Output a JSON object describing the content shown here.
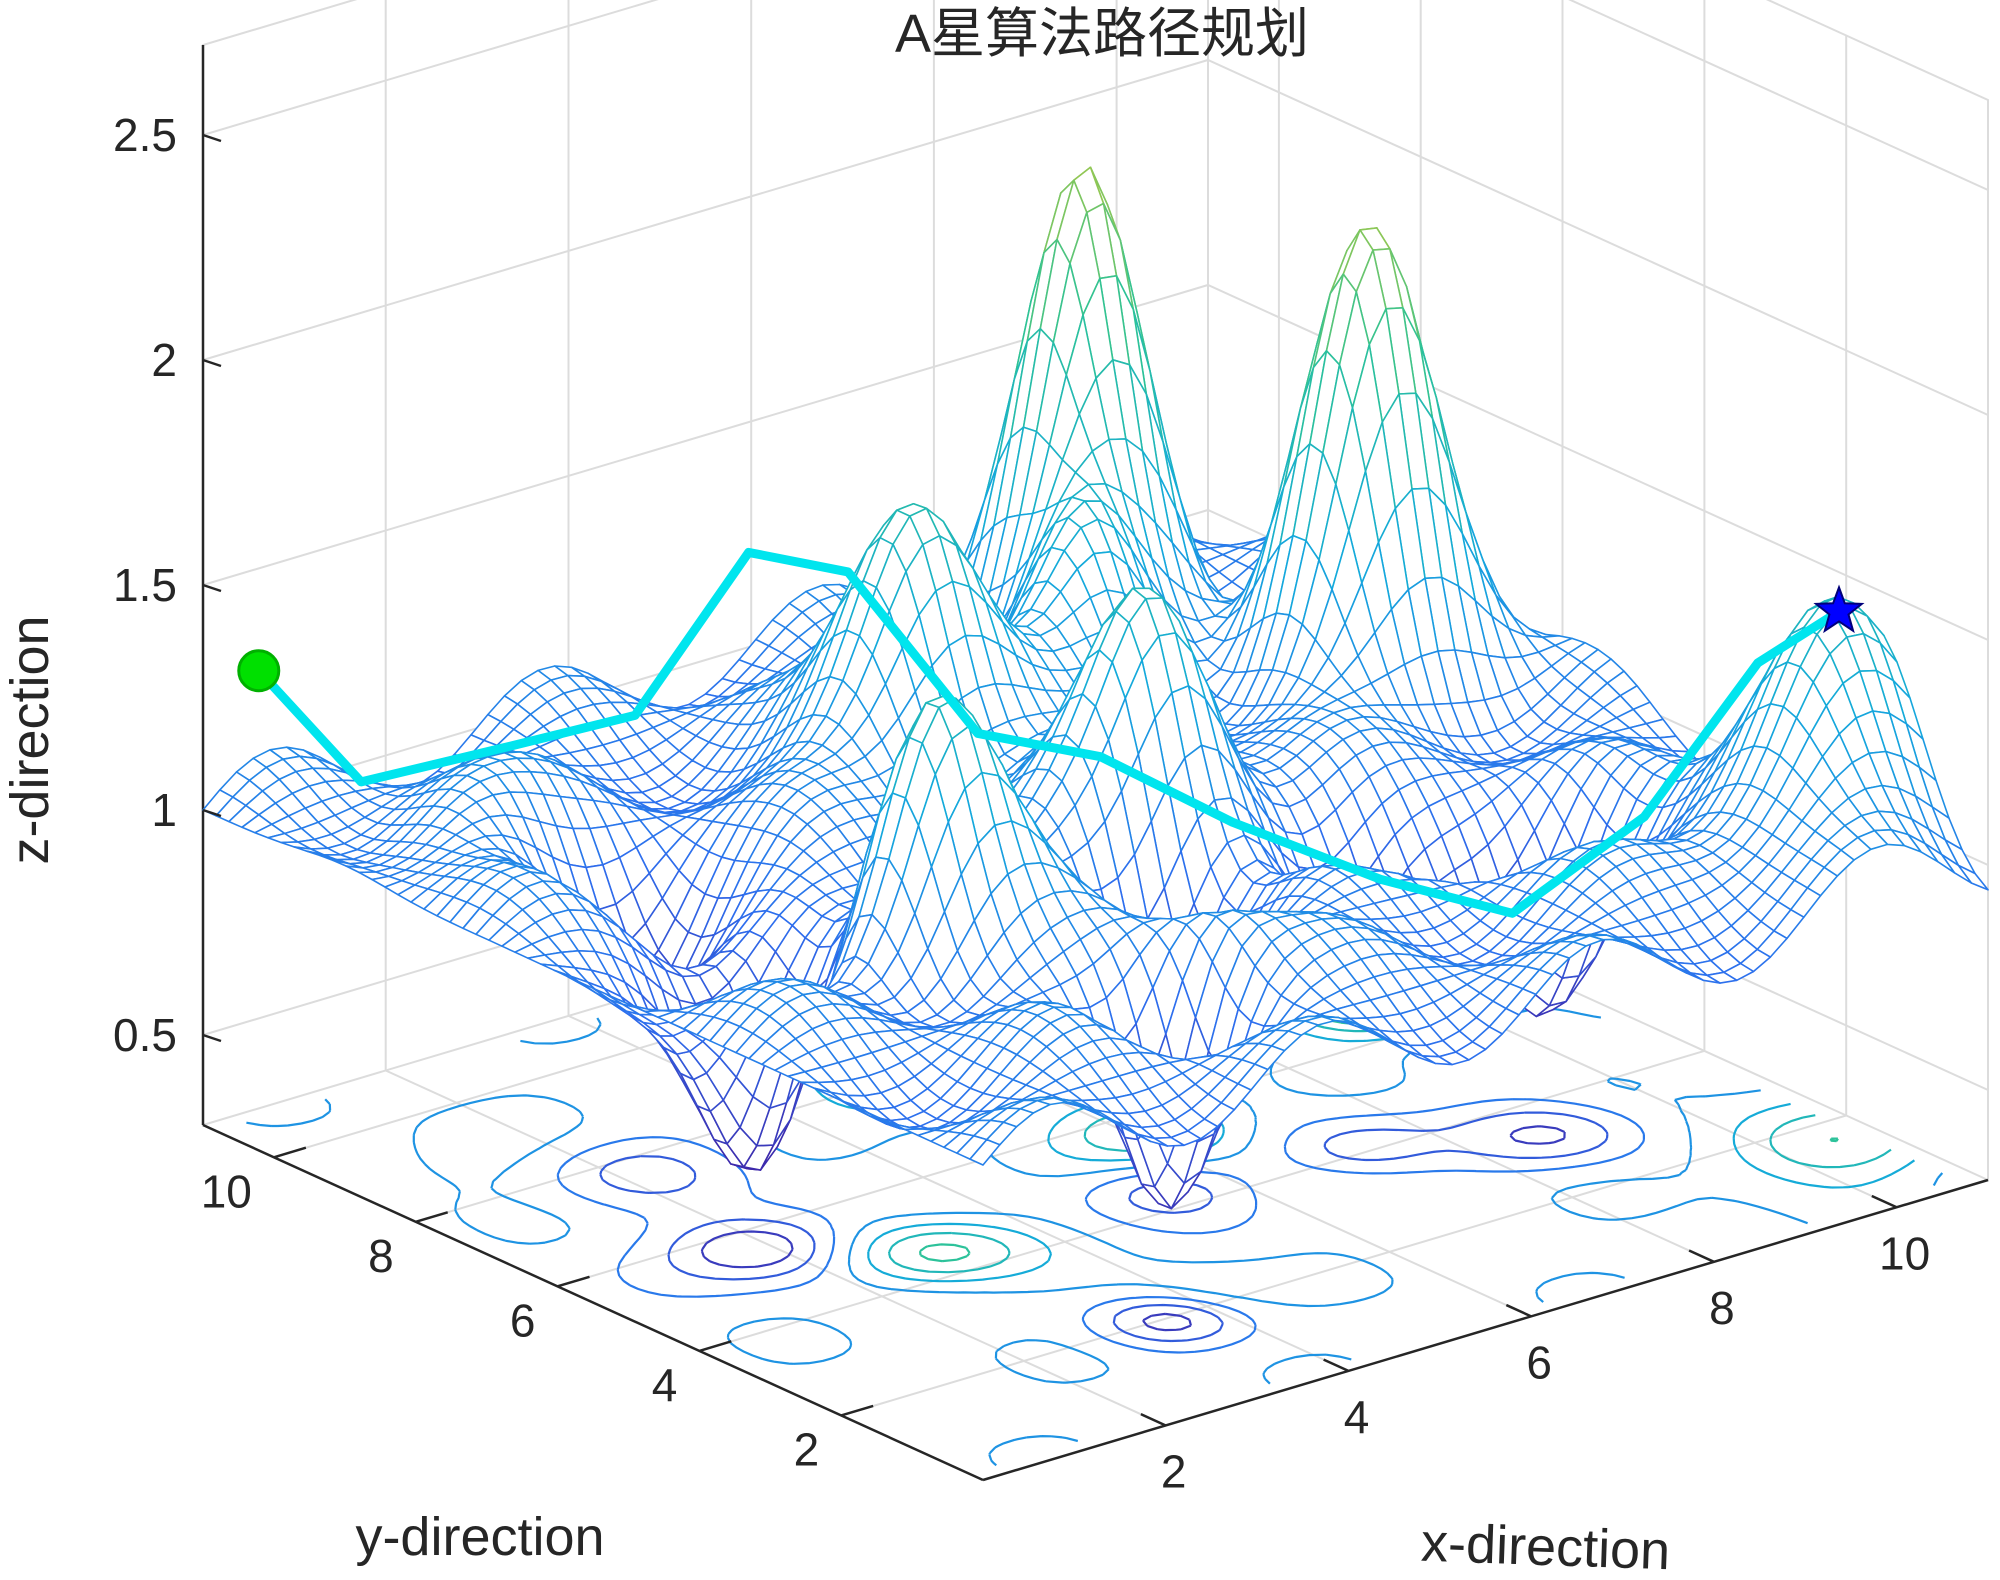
{
  "chart_data": {
    "type": "surface",
    "title": "A星算法路径规划",
    "xlabel": "x-direction",
    "ylabel": "y-direction",
    "zlabel": "z-direction",
    "xlim": [
      0,
      11
    ],
    "ylim": [
      0,
      11
    ],
    "zlim": [
      0.3,
      2.7
    ],
    "x_ticks": [
      2,
      4,
      6,
      8,
      10
    ],
    "y_ticks": [
      2,
      4,
      6,
      8,
      10
    ],
    "z_ticks": [
      0.5,
      1,
      1.5,
      2,
      2.5
    ],
    "x_tick_labels": [
      "2",
      "4",
      "6",
      "8",
      "10"
    ],
    "y_tick_labels": [
      "2",
      "4",
      "6",
      "8",
      "10"
    ],
    "z_tick_labels": [
      "0.5",
      "1",
      "1.5",
      "2",
      "2.5"
    ],
    "grid": true,
    "colormap": "parula",
    "surface_style": "mesh",
    "contour_on_floor": true,
    "path": {
      "color": "#00e5ee",
      "points": [
        {
          "x": 0.3,
          "y": 10.6,
          "z": 1.32
        },
        {
          "x": 0.8,
          "y": 9.8,
          "z": 1.1
        },
        {
          "x": 1.6,
          "y": 8.8,
          "z": 1.2
        },
        {
          "x": 2.4,
          "y": 8.0,
          "z": 1.28
        },
        {
          "x": 3.1,
          "y": 7.3,
          "z": 1.65
        },
        {
          "x": 3.8,
          "y": 6.8,
          "z": 1.6
        },
        {
          "x": 4.6,
          "y": 6.0,
          "z": 1.25
        },
        {
          "x": 5.4,
          "y": 5.3,
          "z": 1.2
        },
        {
          "x": 6.3,
          "y": 4.6,
          "z": 1.05
        },
        {
          "x": 7.3,
          "y": 3.8,
          "z": 0.92
        },
        {
          "x": 8.2,
          "y": 3.1,
          "z": 0.84
        },
        {
          "x": 9.1,
          "y": 2.4,
          "z": 1.05
        },
        {
          "x": 9.8,
          "y": 1.7,
          "z": 1.4
        },
        {
          "x": 10.3,
          "y": 1.2,
          "z": 1.52
        }
      ]
    },
    "start_marker": {
      "shape": "circle",
      "color": "#00e000",
      "x": 0.3,
      "y": 10.6,
      "z": 1.32
    },
    "goal_marker": {
      "shape": "pentagram",
      "color": "#0000ff",
      "x": 10.3,
      "y": 1.2,
      "z": 1.52
    }
  }
}
